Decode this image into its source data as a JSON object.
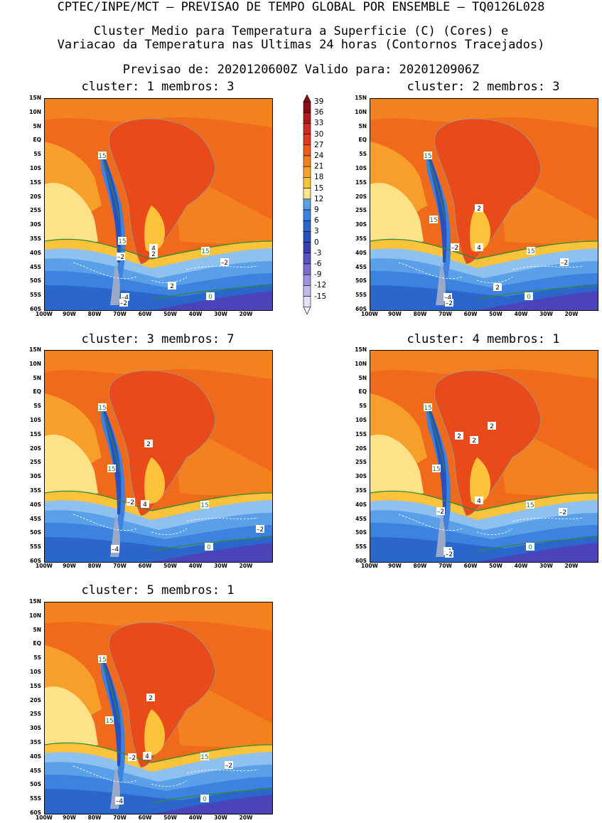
{
  "header": {
    "line1": "CPTEC/INPE/MCT – PREVISAO DE TEMPO GLOBAL POR ENSEMBLE – TQ0126L028",
    "line2": "Cluster Medio para Temperatura a Superficie (C) (Cores) e",
    "line3": "Variacao da Temperatura nas Ultimas 24 horas (Contornos Tracejados)",
    "line4": "Previsao de: 2020120600Z    Valido para: 2020120906Z"
  },
  "axes": {
    "lat_labels": [
      "15N",
      "10N",
      "5N",
      "EQ",
      "5S",
      "10S",
      "15S",
      "20S",
      "25S",
      "30S",
      "35S",
      "40S",
      "45S",
      "50S",
      "55S",
      "60S"
    ],
    "lon_labels": [
      "100W",
      "90W",
      "80W",
      "70W",
      "60W",
      "50W",
      "40W",
      "30W",
      "20W"
    ]
  },
  "colorbar": {
    "levels": [
      "39",
      "36",
      "33",
      "30",
      "27",
      "24",
      "21",
      "18",
      "15",
      "12",
      "9",
      "6",
      "3",
      "0",
      "-3",
      "-6",
      "-9",
      "-12",
      "-15"
    ],
    "colors": [
      "#8b0e12",
      "#b01a1a",
      "#cf2a23",
      "#e23b1d",
      "#f05a1a",
      "#f57f1d",
      "#f9a428",
      "#fbc33a",
      "#fde58a",
      "#5aa0e8",
      "#3d82de",
      "#2b66cd",
      "#2851bd",
      "#3a3fae",
      "#5b50c4",
      "#7d6ed2",
      "#a292df",
      "#c6b8ec",
      "#e8e0f8"
    ]
  },
  "panels": [
    {
      "title": "cluster: 1   membros: 3",
      "labels": [
        {
          "t": "15",
          "k": "g"
        },
        {
          "t": "15",
          "k": "g"
        },
        {
          "t": "15",
          "k": "g"
        },
        {
          "t": "0",
          "k": "g"
        },
        {
          "t": "–2",
          "k": "w"
        },
        {
          "t": "4",
          "k": "w"
        },
        {
          "t": "2",
          "k": "w"
        },
        {
          "t": "–2",
          "k": "w"
        },
        {
          "t": "2",
          "k": "w"
        },
        {
          "t": "–4",
          "k": "w"
        },
        {
          "t": "–2",
          "k": "w"
        }
      ]
    },
    {
      "title": "cluster: 2   membros: 3",
      "labels": [
        {
          "t": "15",
          "k": "g"
        },
        {
          "t": "15",
          "k": "g"
        },
        {
          "t": "15",
          "k": "g"
        },
        {
          "t": "0",
          "k": "g"
        },
        {
          "t": "2",
          "k": "w"
        },
        {
          "t": "–2",
          "k": "w"
        },
        {
          "t": "4",
          "k": "w"
        },
        {
          "t": "–2",
          "k": "w"
        },
        {
          "t": "2",
          "k": "w"
        },
        {
          "t": "–4",
          "k": "w"
        },
        {
          "t": "–2",
          "k": "w"
        }
      ]
    },
    {
      "title": "cluster: 3   membros: 7",
      "labels": [
        {
          "t": "15",
          "k": "g"
        },
        {
          "t": "15",
          "k": "g"
        },
        {
          "t": "15",
          "k": "g"
        },
        {
          "t": "0",
          "k": "g"
        },
        {
          "t": "2",
          "k": "w"
        },
        {
          "t": "–2",
          "k": "w"
        },
        {
          "t": "4",
          "k": "w"
        },
        {
          "t": "–2",
          "k": "w"
        },
        {
          "t": "–4",
          "k": "w"
        }
      ]
    },
    {
      "title": "cluster: 4   membros: 1",
      "labels": [
        {
          "t": "15",
          "k": "g"
        },
        {
          "t": "15",
          "k": "g"
        },
        {
          "t": "15",
          "k": "g"
        },
        {
          "t": "0",
          "k": "g"
        },
        {
          "t": "2",
          "k": "w"
        },
        {
          "t": "2",
          "k": "w"
        },
        {
          "t": "2",
          "k": "w"
        },
        {
          "t": "–2",
          "k": "w"
        },
        {
          "t": "4",
          "k": "w"
        },
        {
          "t": "–2",
          "k": "w"
        },
        {
          "t": "–4",
          "k": "w"
        },
        {
          "t": "–2",
          "k": "w"
        }
      ]
    },
    {
      "title": "cluster: 5   membros: 1",
      "labels": [
        {
          "t": "15",
          "k": "g"
        },
        {
          "t": "15",
          "k": "g"
        },
        {
          "t": "15",
          "k": "g"
        },
        {
          "t": "0",
          "k": "g"
        },
        {
          "t": "2",
          "k": "w"
        },
        {
          "t": "–2",
          "k": "w"
        },
        {
          "t": "4",
          "k": "w"
        },
        {
          "t": "–2",
          "k": "w"
        },
        {
          "t": "–4",
          "k": "w"
        }
      ]
    }
  ]
}
